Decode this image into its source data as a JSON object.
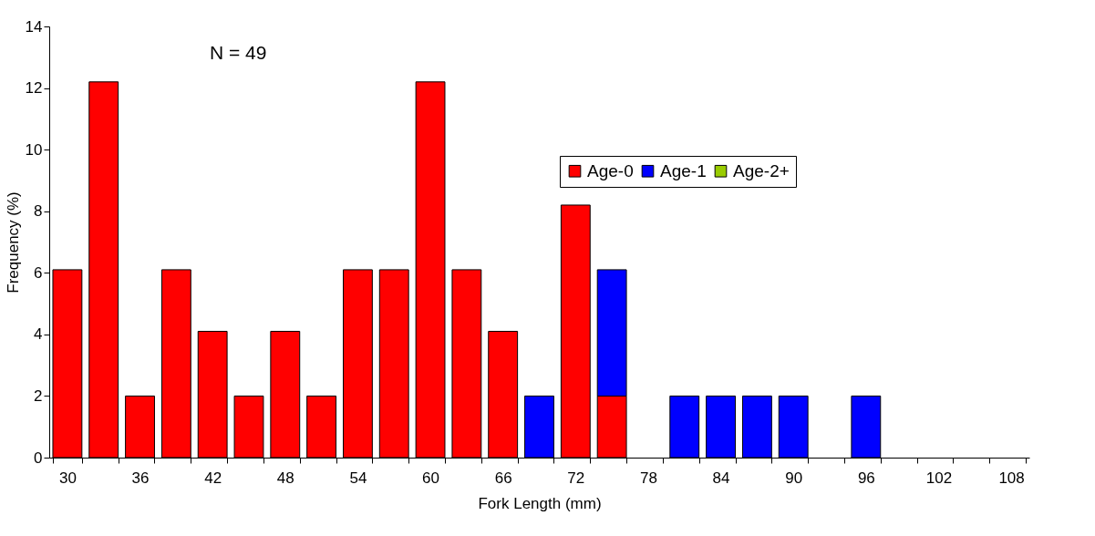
{
  "chart_data": {
    "type": "bar",
    "stacked": true,
    "xlabel": "Fork Length (mm)",
    "ylabel": "Frequency (%)",
    "categories": [
      "30",
      null,
      "36",
      null,
      "42",
      null,
      "48",
      null,
      "54",
      null,
      "60",
      null,
      "66",
      null,
      "72",
      null,
      "78",
      null,
      "84",
      null,
      "90",
      null,
      "96",
      null,
      "102",
      null,
      "108"
    ],
    "series": [
      {
        "name": "Age-0",
        "color": "#ff0000",
        "values": [
          6.1,
          12.2,
          2.0,
          6.1,
          4.1,
          2.0,
          4.1,
          2.0,
          6.1,
          6.1,
          12.2,
          6.1,
          4.1,
          0,
          8.2,
          2.0,
          0,
          0,
          0,
          0,
          0,
          0,
          0,
          0,
          0,
          0,
          0
        ]
      },
      {
        "name": "Age-1",
        "color": "#0000ff",
        "values": [
          0,
          0,
          0,
          0,
          0,
          0,
          0,
          0,
          0,
          0,
          0,
          0,
          0,
          2.0,
          0,
          4.1,
          0,
          2.0,
          2.0,
          2.0,
          2.0,
          0,
          2.0,
          0,
          0,
          0,
          0
        ]
      },
      {
        "name": "Age-2+",
        "color": "#99cc00",
        "values": [
          0,
          0,
          0,
          0,
          0,
          0,
          0,
          0,
          0,
          0,
          0,
          0,
          0,
          0,
          0,
          0,
          0,
          0,
          0,
          0,
          0,
          0,
          0,
          0,
          0,
          0,
          0
        ]
      }
    ],
    "ylim": [
      0,
      14
    ],
    "yticks": [
      0,
      2,
      4,
      6,
      8,
      10,
      12,
      14
    ],
    "grid": false,
    "legend": "top right",
    "annotations": [
      "N = 49"
    ]
  }
}
